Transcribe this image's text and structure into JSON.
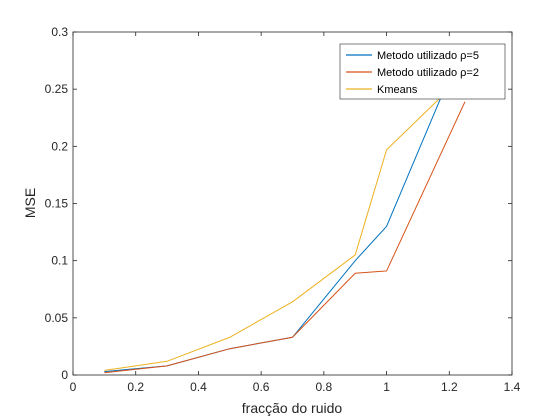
{
  "chart_data": {
    "type": "line",
    "xlabel": "fracção do ruido",
    "ylabel": "MSE",
    "xlim": [
      0,
      1.4
    ],
    "ylim": [
      0,
      0.3
    ],
    "xticks": [
      0,
      0.2,
      0.4,
      0.6,
      0.8,
      1,
      1.2,
      1.4
    ],
    "xtick_labels": [
      "0",
      "0.2",
      "0.4",
      "0.6",
      "0.8",
      "1",
      "1.2",
      "1.4"
    ],
    "yticks": [
      0,
      0.05,
      0.1,
      0.15,
      0.2,
      0.25,
      0.3
    ],
    "ytick_labels": [
      "0",
      "0.05",
      "0.1",
      "0.15",
      "0.2",
      "0.25",
      "0.3"
    ],
    "grid": false,
    "legend_position": "top-right",
    "series": [
      {
        "name": "Metodo utilizado ρ=5",
        "color": "#0072BD",
        "x": [
          0.1,
          0.3,
          0.5,
          0.7,
          0.9,
          1.0,
          1.2
        ],
        "y": [
          0.003,
          0.008,
          0.023,
          0.033,
          0.1,
          0.13,
          0.26
        ]
      },
      {
        "name": "Metodo utilizado ρ=2",
        "color": "#D95319",
        "x": [
          0.1,
          0.3,
          0.5,
          0.7,
          0.9,
          1.0,
          1.25
        ],
        "y": [
          0.002,
          0.008,
          0.023,
          0.033,
          0.089,
          0.091,
          0.239
        ]
      },
      {
        "name": "Kmeans",
        "color": "#EDB120",
        "x": [
          0.1,
          0.3,
          0.5,
          0.7,
          0.9,
          1.0,
          1.2
        ],
        "y": [
          0.004,
          0.012,
          0.033,
          0.064,
          0.105,
          0.197,
          0.25
        ]
      }
    ]
  }
}
